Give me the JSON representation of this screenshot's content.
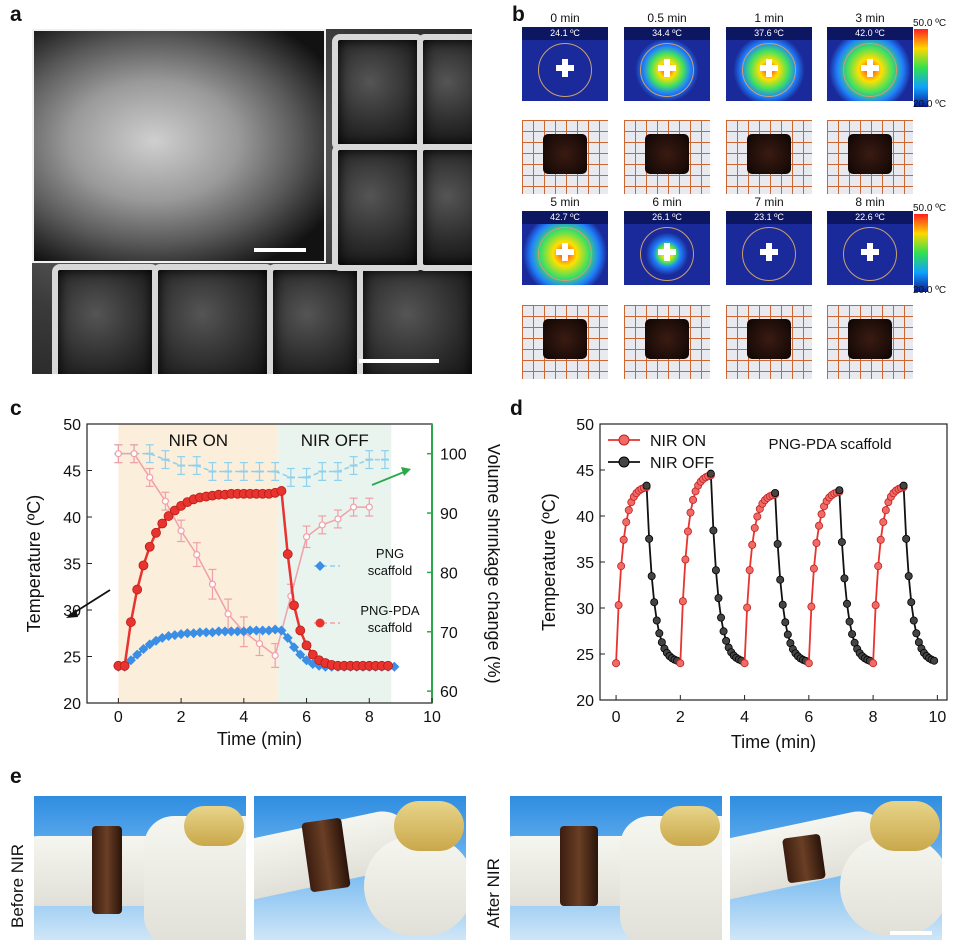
{
  "panels": {
    "a": "a",
    "b": "b",
    "c": "c",
    "d": "d",
    "e": "e"
  },
  "panel_b": {
    "rows": [
      [
        {
          "time": "0 min",
          "temp": "24.1 ºC",
          "level": 0.0
        },
        {
          "time": "0.5 min",
          "temp": "34.4 ºC",
          "level": 0.45
        },
        {
          "time": "1 min",
          "temp": "37.6 ºC",
          "level": 0.6
        },
        {
          "time": "3 min",
          "temp": "42.0 ºC",
          "level": 0.8
        }
      ],
      [
        {
          "time": "5 min",
          "temp": "42.7 ºC",
          "level": 0.85
        },
        {
          "time": "6 min",
          "temp": "26.1 ºC",
          "level": 0.05
        },
        {
          "time": "7 min",
          "temp": "23.1 ºC",
          "level": 0.0
        },
        {
          "time": "8 min",
          "temp": "22.6 ºC",
          "level": 0.0
        }
      ]
    ],
    "colorbar_max": "50.0 ºC",
    "colorbar_min": "20.0 ºC"
  },
  "panel_e": {
    "before_label": "Before NIR",
    "after_label": "After NIR"
  },
  "chart_data": [
    {
      "panel": "c",
      "type": "line",
      "xlabel": "Time (min)",
      "ylabel": "Temperature (ºC)",
      "ylabel_right": "Volume shrinkage change (%)",
      "xlim": [
        -1,
        10
      ],
      "ylim": [
        20,
        50
      ],
      "ylim_right": [
        58,
        105
      ],
      "xticks": [
        0,
        2,
        4,
        6,
        8,
        10
      ],
      "yticks": [
        20,
        25,
        30,
        35,
        40,
        45,
        50
      ],
      "yticks_right": [
        60,
        70,
        80,
        90,
        100
      ],
      "regions": [
        {
          "label": "NIR ON",
          "x0": 0,
          "x1": 5.1,
          "color": "#fbeedb"
        },
        {
          "label": "NIR OFF",
          "x0": 5.1,
          "x1": 8.7,
          "color": "#e9f4ef"
        }
      ],
      "legend": [
        {
          "name": "PNG\nscaffold"
        },
        {
          "name": "PNG-PDA\nscaffold"
        }
      ],
      "series": [
        {
          "name": "PNG scaffold",
          "axis": "left",
          "marker": "diamond",
          "color": "#3a8ee6",
          "x": [
            0,
            0.2,
            0.4,
            0.6,
            0.8,
            1.0,
            1.2,
            1.4,
            1.6,
            1.8,
            2.0,
            2.2,
            2.4,
            2.6,
            2.8,
            3.0,
            3.2,
            3.4,
            3.6,
            3.8,
            4.0,
            4.2,
            4.4,
            4.6,
            4.8,
            5.0,
            5.2,
            5.4,
            5.6,
            5.8,
            6.0,
            6.2,
            6.4,
            6.6,
            6.8,
            7.0,
            7.2,
            7.4,
            7.6,
            7.8,
            8.0,
            8.2,
            8.4,
            8.6,
            8.8
          ],
          "y": [
            23.9,
            23.9,
            24.6,
            25.2,
            25.8,
            26.3,
            26.7,
            27.0,
            27.2,
            27.3,
            27.4,
            27.5,
            27.5,
            27.6,
            27.6,
            27.6,
            27.7,
            27.7,
            27.7,
            27.7,
            27.7,
            27.8,
            27.8,
            27.8,
            27.8,
            27.9,
            27.8,
            27.0,
            26.0,
            25.2,
            24.6,
            24.2,
            24.0,
            23.9,
            23.9,
            23.9,
            23.9,
            23.9,
            23.9,
            23.9,
            23.9,
            23.9,
            23.9,
            23.9,
            23.9
          ]
        },
        {
          "name": "PNG-PDA scaffold",
          "axis": "left",
          "marker": "circle",
          "color": "#e8332e",
          "x": [
            0,
            0.2,
            0.4,
            0.6,
            0.8,
            1.0,
            1.2,
            1.4,
            1.6,
            1.8,
            2.0,
            2.2,
            2.4,
            2.6,
            2.8,
            3.0,
            3.2,
            3.4,
            3.6,
            3.8,
            4.0,
            4.2,
            4.4,
            4.6,
            4.8,
            5.0,
            5.2,
            5.4,
            5.6,
            5.8,
            6.0,
            6.2,
            6.4,
            6.6,
            6.8,
            7.0,
            7.2,
            7.4,
            7.6,
            7.8,
            8.0,
            8.2,
            8.4,
            8.6
          ],
          "y": [
            24.0,
            24.0,
            28.7,
            32.2,
            34.8,
            36.8,
            38.3,
            39.3,
            40.1,
            40.7,
            41.2,
            41.6,
            41.9,
            42.1,
            42.2,
            42.3,
            42.4,
            42.4,
            42.5,
            42.5,
            42.5,
            42.5,
            42.5,
            42.5,
            42.5,
            42.6,
            42.8,
            36.0,
            30.5,
            27.8,
            26.2,
            25.2,
            24.6,
            24.3,
            24.1,
            24.0,
            24.0,
            24.0,
            24.0,
            24.0,
            24.0,
            24.0,
            24.0,
            24.0
          ]
        },
        {
          "name": "PNG volume",
          "axis": "right",
          "marker": "dash",
          "color": "#8fd0ee",
          "x": [
            0,
            0.5,
            1.0,
            1.5,
            2.0,
            2.5,
            3.0,
            3.5,
            4.0,
            4.5,
            5.0,
            5.5,
            6.0,
            6.5,
            7.0,
            7.5,
            8.0,
            8.5
          ],
          "y": [
            100,
            100,
            100,
            99,
            98,
            98,
            97,
            97,
            97,
            97,
            97,
            96,
            96,
            97,
            97,
            98,
            99,
            99
          ],
          "err": [
            1.5,
            1.5,
            1.5,
            1.5,
            1.5,
            1.5,
            1.5,
            1.5,
            1.5,
            1.5,
            1.5,
            1.5,
            1.5,
            1.5,
            1.5,
            1.5,
            1.5,
            1.5
          ]
        },
        {
          "name": "PNG-PDA volume",
          "axis": "right",
          "marker": "open-circle",
          "color": "#f0a0a8",
          "x": [
            0,
            0.5,
            1.0,
            1.5,
            2.0,
            2.5,
            3.0,
            3.5,
            4.0,
            4.5,
            5.0,
            5.5,
            6.0,
            6.5,
            7.0,
            7.5,
            8.0
          ],
          "y": [
            100,
            100,
            96,
            92,
            87,
            83,
            78,
            73,
            70,
            68,
            66,
            76,
            86,
            88,
            89,
            91,
            91
          ],
          "err": [
            1.5,
            1.5,
            1.5,
            1.5,
            1.8,
            2.0,
            2.5,
            2.5,
            2.5,
            2.0,
            2.0,
            2.0,
            1.8,
            1.5,
            1.5,
            1.5,
            1.5
          ]
        }
      ]
    },
    {
      "panel": "d",
      "type": "line",
      "title": "PNG-PDA scaffold",
      "xlabel": "Time (min)",
      "ylabel": "Temperature (ºC)",
      "xlim": [
        -0.5,
        10.3
      ],
      "ylim": [
        20,
        50
      ],
      "xticks": [
        0,
        2,
        4,
        6,
        8,
        10
      ],
      "yticks": [
        20,
        25,
        30,
        35,
        40,
        45,
        50
      ],
      "legend": [
        {
          "name": "NIR ON",
          "color": "#e8332e"
        },
        {
          "name": "NIR OFF",
          "color": "#111111"
        }
      ],
      "cycles": [
        {
          "start": 0,
          "peak": 43.3
        },
        {
          "start": 2,
          "peak": 44.6
        },
        {
          "start": 4,
          "peak": 42.5
        },
        {
          "start": 6,
          "peak": 42.8
        },
        {
          "start": 8,
          "peak": 43.3
        }
      ]
    }
  ]
}
